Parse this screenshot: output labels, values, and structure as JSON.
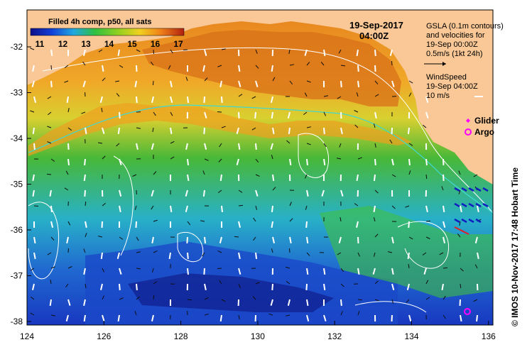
{
  "title_box": {
    "label": "Filled 4h comp, p50, all sats",
    "ticks": [
      "11",
      "12",
      "13",
      "14",
      "15",
      "16",
      "17"
    ]
  },
  "datetime": {
    "date": "19-Sep-2017",
    "time": "04:00Z"
  },
  "legend": {
    "gsla_lines": [
      "GSLA (0.1m contours)",
      "and velocities for",
      "19-Sep 00:00Z",
      "0.5m/s (1kt 24h)"
    ],
    "wind_lines": [
      "WindSpeed",
      "19-Sep 04:00Z",
      "10 m/s"
    ],
    "glider": "Glider",
    "argo": "Argo"
  },
  "axes": {
    "lat_ticks": [
      "-32",
      "-33",
      "-34",
      "-35",
      "-36",
      "-37",
      "-38"
    ],
    "lon_ticks": [
      "124",
      "126",
      "128",
      "130",
      "132",
      "134",
      "136"
    ]
  },
  "credit": "© IMOS 10-Nov-2017 17:48 Hobart Time",
  "colors": {
    "land": "#f9c896",
    "warm": "#e07818",
    "orange": "#f0a020",
    "yellow": "#e8d830",
    "green": "#38b838",
    "cyan": "#28b0d0",
    "blue": "#2050d0",
    "navy": "#101880",
    "colorbar": [
      "#10108a",
      "#1040d8",
      "#20a8e0",
      "#30c040",
      "#90d020",
      "#f0d020",
      "#f08018",
      "#b02010"
    ]
  }
}
